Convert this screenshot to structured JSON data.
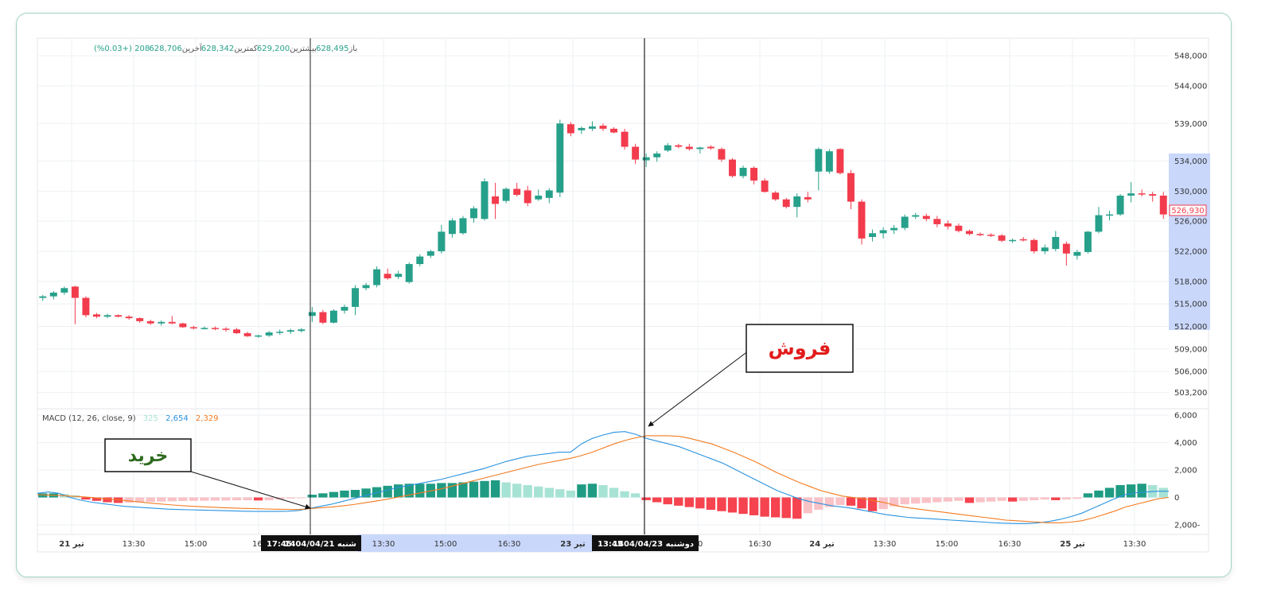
{
  "header": {
    "open_label": "باز",
    "open_value": "628,495",
    "high_label": "بیشترین",
    "high_value": "629,200",
    "low_label": "کمترین",
    "low_value": "628,342",
    "close_label": "آخرین",
    "close_value": "628,706",
    "change": "208 (+0.03%)"
  },
  "last_price_label": "526,930",
  "annotations": {
    "buy_label": "خرید",
    "sell_label": "فروش",
    "buy_time": "17:45",
    "buy_date": "شنبه 1404/04/21",
    "sell_time": "13:45",
    "sell_date": "دوشنبه 1404/04/23"
  },
  "macd": {
    "title": "MACD (12, 26, close, 9)",
    "hist_value": "325",
    "macd_value": "2,654",
    "signal_value": "2,329"
  },
  "colors": {
    "up": "#26a08a",
    "down": "#f23b4c",
    "hist_up_strong": "#1f9b83",
    "hist_up_light": "#a7e3d5",
    "hist_down_strong": "#f5434f",
    "hist_down_light": "#f9c2c7",
    "macd_line": "#2a93e0",
    "signal_line": "#f27b21",
    "highlight": "#c9d7fb"
  },
  "chart_data": [
    {
      "type": "candlestick",
      "ylim": [
        502000,
        549500
      ],
      "price_ticks": [
        548000,
        544000,
        539000,
        534000,
        530000,
        526000,
        522000,
        518000,
        515000,
        512000,
        509000,
        506000,
        503200
      ],
      "price_tick_labels": [
        "548,000",
        "544,000",
        "539,000",
        "534,000",
        "530,000",
        "526,000",
        "522,000",
        "518,000",
        "515,000",
        "512,000",
        "509,000",
        "506,000",
        "503,200"
      ],
      "x_tick_labels": [
        "21 تیر",
        "13:30",
        "15:00",
        "16:",
        "13:30",
        "15:00",
        "16:30",
        "23 تیر",
        "00",
        "16:30",
        "24 تیر",
        "13:30",
        "15:00",
        "16:30",
        "25 تیر",
        "13:30"
      ],
      "ohlc": [
        [
          515800,
          516200,
          515400,
          516000
        ],
        [
          516000,
          516700,
          515600,
          516500
        ],
        [
          516500,
          517300,
          516200,
          517100
        ],
        [
          517300,
          517400,
          512300,
          515800
        ],
        [
          515800,
          516000,
          513200,
          513500
        ],
        [
          513600,
          513800,
          513100,
          513300
        ],
        [
          513300,
          513700,
          513100,
          513500
        ],
        [
          513500,
          513600,
          513200,
          513300
        ],
        [
          513300,
          513500,
          512900,
          513100
        ],
        [
          513100,
          513200,
          512500,
          512700
        ],
        [
          512700,
          512900,
          512200,
          512400
        ],
        [
          512400,
          512800,
          512100,
          512600
        ],
        [
          512600,
          513400,
          512300,
          512400
        ],
        [
          512400,
          512500,
          511800,
          511900
        ],
        [
          511900,
          512100,
          511600,
          511800
        ],
        [
          511800,
          512000,
          511600,
          511800
        ],
        [
          511800,
          512000,
          511500,
          511700
        ],
        [
          511700,
          511900,
          511300,
          511600
        ],
        [
          511600,
          511800,
          511000,
          511100
        ],
        [
          511100,
          511300,
          510600,
          510700
        ],
        [
          510700,
          510900,
          510500,
          510800
        ],
        [
          510800,
          511400,
          510600,
          511200
        ],
        [
          511200,
          511600,
          510900,
          511300
        ],
        [
          511300,
          511700,
          511000,
          511500
        ],
        [
          511400,
          511800,
          511200,
          511600
        ],
        [
          513400,
          514600,
          512600,
          513900
        ],
        [
          513900,
          514200,
          512300,
          512500
        ],
        [
          512500,
          514300,
          512400,
          514100
        ],
        [
          514100,
          514900,
          513700,
          514600
        ],
        [
          514600,
          517500,
          513500,
          517100
        ],
        [
          517100,
          517800,
          516800,
          517500
        ],
        [
          517500,
          520000,
          517200,
          519600
        ],
        [
          519000,
          519700,
          518200,
          518400
        ],
        [
          518600,
          519400,
          518300,
          519000
        ],
        [
          517900,
          520500,
          517700,
          520300
        ],
        [
          520300,
          521600,
          520000,
          521300
        ],
        [
          521400,
          522200,
          521100,
          522000
        ],
        [
          522000,
          525500,
          521700,
          524600
        ],
        [
          524300,
          526400,
          523800,
          526100
        ],
        [
          524400,
          526700,
          524200,
          526400
        ],
        [
          526400,
          528000,
          525800,
          527700
        ],
        [
          526300,
          531700,
          526100,
          531300
        ],
        [
          529300,
          531100,
          526300,
          528300
        ],
        [
          528700,
          530500,
          528400,
          530300
        ],
        [
          530300,
          531100,
          529300,
          529500
        ],
        [
          530100,
          530700,
          528000,
          528400
        ],
        [
          528900,
          530200,
          528700,
          529400
        ],
        [
          529100,
          530400,
          528400,
          530100
        ],
        [
          529800,
          539500,
          529200,
          539000
        ],
        [
          538900,
          539200,
          537300,
          537700
        ],
        [
          538100,
          538600,
          537600,
          538400
        ],
        [
          538300,
          539300,
          538000,
          538600
        ],
        [
          538700,
          539000,
          538000,
          538300
        ],
        [
          538300,
          538500,
          537700,
          537800
        ],
        [
          537900,
          538300,
          535500,
          535900
        ],
        [
          535900,
          536300,
          533600,
          534200
        ],
        [
          534100,
          535000,
          533200,
          534500
        ],
        [
          534500,
          535300,
          533900,
          535000
        ],
        [
          535400,
          536400,
          535200,
          536100
        ],
        [
          536100,
          536300,
          535700,
          535900
        ],
        [
          535900,
          536300,
          535400,
          535600
        ],
        [
          535600,
          535900,
          535000,
          535800
        ],
        [
          535900,
          536100,
          535500,
          535700
        ],
        [
          535600,
          535800,
          533900,
          534200
        ],
        [
          534200,
          534400,
          531800,
          532000
        ],
        [
          532000,
          533400,
          531700,
          533100
        ],
        [
          533100,
          533300,
          530900,
          531400
        ],
        [
          531400,
          531700,
          529800,
          529900
        ],
        [
          529800,
          530000,
          528700,
          528900
        ],
        [
          528900,
          529100,
          527700,
          527900
        ],
        [
          527900,
          529700,
          526500,
          529300
        ],
        [
          529200,
          529900,
          528500,
          528900
        ],
        [
          532600,
          535800,
          530100,
          535600
        ],
        [
          532600,
          535600,
          532300,
          535300
        ],
        [
          535600,
          535700,
          532200,
          532400
        ],
        [
          532400,
          532800,
          527600,
          528600
        ],
        [
          528600,
          528900,
          522900,
          523700
        ],
        [
          523900,
          524900,
          523300,
          524400
        ],
        [
          524400,
          525200,
          523700,
          524800
        ],
        [
          524800,
          525500,
          524300,
          525100
        ],
        [
          525100,
          526900,
          524800,
          526600
        ],
        [
          526600,
          527100,
          526300,
          526800
        ],
        [
          526700,
          527000,
          526000,
          526300
        ],
        [
          526300,
          526700,
          525200,
          525600
        ],
        [
          525700,
          526100,
          524900,
          525300
        ],
        [
          525400,
          525700,
          524500,
          524700
        ],
        [
          524700,
          524900,
          524100,
          524300
        ],
        [
          524300,
          524500,
          524000,
          524200
        ],
        [
          524200,
          524400,
          523900,
          524100
        ],
        [
          524100,
          524300,
          523200,
          523400
        ],
        [
          523400,
          523700,
          523100,
          523500
        ],
        [
          523600,
          523900,
          523300,
          523500
        ],
        [
          523500,
          523700,
          521700,
          522000
        ],
        [
          522000,
          522900,
          521600,
          522500
        ],
        [
          522300,
          524700,
          522000,
          523900
        ],
        [
          523000,
          523300,
          520100,
          521700
        ],
        [
          521400,
          522200,
          520900,
          521900
        ],
        [
          521900,
          524700,
          521700,
          524600
        ],
        [
          524600,
          527900,
          524400,
          526800
        ],
        [
          526800,
          527400,
          526100,
          526900
        ],
        [
          526900,
          529600,
          526700,
          529400
        ],
        [
          529400,
          531200,
          528500,
          529700
        ],
        [
          529700,
          530200,
          529300,
          529600
        ],
        [
          529600,
          529900,
          528600,
          529400
        ],
        [
          529400,
          529900,
          526300,
          526900
        ]
      ]
    },
    {
      "type": "macd",
      "title": "MACD (12, 26, close, 9)",
      "ylim": [
        -2000,
        6000
      ],
      "y_ticks": [
        6000,
        4000,
        2000,
        0,
        -2000
      ],
      "y_tick_labels": [
        "6,000",
        "4,000",
        "2,000",
        "0",
        "2,000-"
      ],
      "histogram": [
        300,
        300,
        250,
        150,
        -150,
        -250,
        -350,
        -400,
        -380,
        -350,
        -320,
        -300,
        -280,
        -260,
        -250,
        -240,
        -230,
        -220,
        -210,
        -200,
        -220,
        -200,
        -150,
        -80,
        -20,
        200,
        300,
        400,
        500,
        550,
        650,
        750,
        850,
        950,
        1000,
        1000,
        1000,
        1050,
        1050,
        1100,
        1150,
        1200,
        1250,
        1100,
        1000,
        900,
        800,
        700,
        600,
        500,
        950,
        1000,
        900,
        700,
        450,
        300,
        -200,
        -350,
        -500,
        -600,
        -700,
        -800,
        -900,
        -1000,
        -1100,
        -1200,
        -1300,
        -1400,
        -1450,
        -1500,
        -1550,
        -1150,
        -900,
        -700,
        -550,
        -600,
        -800,
        -1000,
        -850,
        -650,
        -500,
        -450,
        -400,
        -350,
        -300,
        -250,
        -400,
        -350,
        -300,
        -250,
        -300,
        -250,
        -200,
        -150,
        -200,
        -150,
        -100,
        300,
        500,
        700,
        900,
        950,
        1000,
        900,
        700
      ],
      "macd_line": [
        300,
        400,
        300,
        0,
        -200,
        -350,
        -450,
        -550,
        -650,
        -700,
        -750,
        -800,
        -850,
        -880,
        -900,
        -920,
        -940,
        -960,
        -980,
        -1000,
        -1020,
        -1020,
        -1020,
        -1000,
        -950,
        -800,
        -650,
        -500,
        -300,
        -100,
        100,
        300,
        500,
        700,
        850,
        1000,
        1150,
        1300,
        1500,
        1700,
        1900,
        2100,
        2350,
        2600,
        2800,
        3000,
        3100,
        3200,
        3300,
        3300,
        3900,
        4300,
        4550,
        4750,
        4800,
        4600,
        4300,
        4100,
        3900,
        3700,
        3400,
        3100,
        2800,
        2500,
        2100,
        1700,
        1300,
        900,
        500,
        200,
        -100,
        -300,
        -450,
        -600,
        -700,
        -800,
        -950,
        -1100,
        -1250,
        -1350,
        -1450,
        -1500,
        -1550,
        -1600,
        -1650,
        -1700,
        -1750,
        -1800,
        -1850,
        -1880,
        -1900,
        -1900,
        -1850,
        -1750,
        -1600,
        -1400,
        -1150,
        -800,
        -450,
        -100,
        200,
        350,
        400,
        450,
        450
      ],
      "signal_line": [
        200,
        180,
        150,
        100,
        50,
        0,
        -80,
        -150,
        -220,
        -300,
        -380,
        -450,
        -520,
        -580,
        -630,
        -670,
        -710,
        -740,
        -770,
        -800,
        -820,
        -840,
        -860,
        -870,
        -880,
        -820,
        -760,
        -700,
        -620,
        -520,
        -400,
        -280,
        -150,
        0,
        150,
        300,
        450,
        600,
        800,
        1000,
        1200,
        1400,
        1600,
        1800,
        2000,
        2200,
        2400,
        2550,
        2700,
        2850,
        3050,
        3300,
        3600,
        3900,
        4150,
        4350,
        4500,
        4500,
        4500,
        4450,
        4300,
        4100,
        3900,
        3600,
        3300,
        2950,
        2600,
        2200,
        1800,
        1450,
        1100,
        800,
        500,
        300,
        100,
        0,
        -100,
        -250,
        -400,
        -600,
        -750,
        -850,
        -950,
        -1050,
        -1150,
        -1250,
        -1350,
        -1450,
        -1550,
        -1650,
        -1700,
        -1750,
        -1800,
        -1850,
        -1850,
        -1800,
        -1700,
        -1500,
        -1250,
        -1000,
        -700,
        -500,
        -300,
        -100,
        0
      ]
    }
  ]
}
